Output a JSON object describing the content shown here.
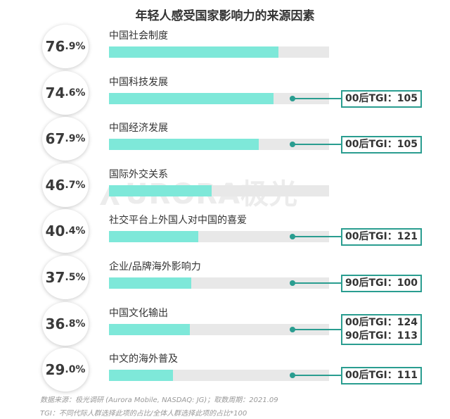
{
  "chart_data": {
    "type": "bar",
    "title": "年轻人感受国家影响力的来源因素",
    "xlim": [
      0,
      100
    ],
    "categories": [
      "中国社会制度",
      "中国科技发展",
      "中国经济发展",
      "国际外交关系",
      "社交平台上外国人对中国的喜爱",
      "企业/品牌海外影响力",
      "中国文化输出",
      "中文的海外普及"
    ],
    "values": [
      76.9,
      74.6,
      67.9,
      46.7,
      40.4,
      37.5,
      36.8,
      29.0
    ],
    "value_int_labels": [
      "76",
      "74",
      "67",
      "46",
      "40",
      "37",
      "36",
      "29"
    ],
    "value_dec_labels": [
      ".9%",
      ".6%",
      ".9%",
      ".7%",
      ".4%",
      ".5%",
      ".8%",
      ".0%"
    ],
    "tgi_annotations": [
      [],
      [
        "00后TGI：105"
      ],
      [
        "00后TGI：105"
      ],
      [],
      [
        "00后TGI：121"
      ],
      [
        "90后TGI：100"
      ],
      [
        "00后TGI：124",
        "90后TGI：113"
      ],
      [
        "00后TGI：111"
      ]
    ],
    "colors": {
      "bar": "#7ee8d9",
      "track": "#e8e8e8",
      "accent": "#2a9d90"
    }
  },
  "watermark": "URORA极光",
  "footnotes": {
    "source": "数据来源：极光调研 (Aurora Mobile, NASDAQ: JG)；取数周期：2021.09",
    "tgi": "TGI：不同代际人群选择此项的占比/全体人群选择此项的占比*100"
  }
}
